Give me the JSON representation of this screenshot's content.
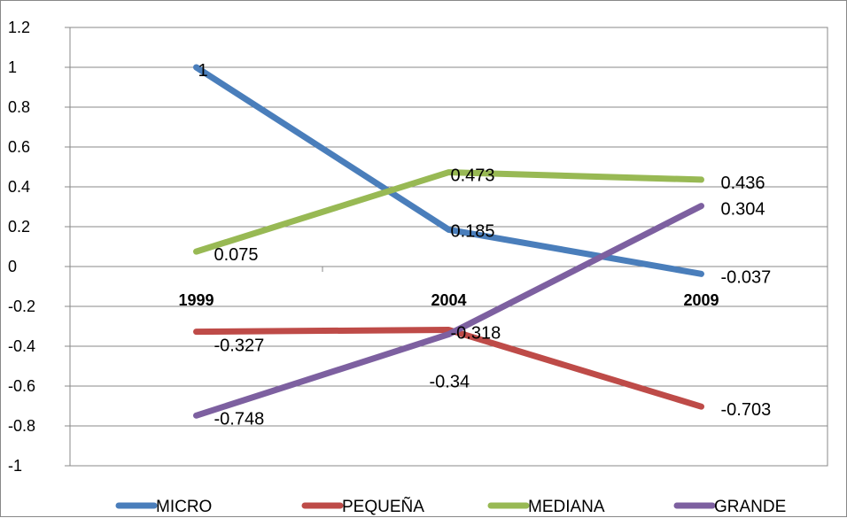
{
  "chart_data": {
    "type": "line",
    "categories": [
      "1999",
      "2004",
      "2009"
    ],
    "ylim": [
      -1,
      1.2
    ],
    "yticks": [
      "1.2",
      "1",
      "0.8",
      "0.6",
      "0.4",
      "0.2",
      "0",
      "-0.2",
      "-0.4",
      "-0.6",
      "-0.8",
      "-1"
    ],
    "grid": true,
    "legend": "bottom",
    "series": [
      {
        "name": "MICRO",
        "color": "#4a7ebb",
        "values": [
          1,
          0.185,
          -0.037
        ],
        "labels": [
          "1",
          "0.185",
          "-0.037"
        ]
      },
      {
        "name": "PEQUEÑA",
        "color": "#be4b48",
        "values": [
          -0.327,
          -0.318,
          -0.703
        ],
        "labels": [
          "-0.327",
          "-0.318",
          "-0.703"
        ]
      },
      {
        "name": "MEDIANA",
        "color": "#98b954",
        "values": [
          0.075,
          0.473,
          0.436
        ],
        "labels": [
          "0.075",
          "0.473",
          "0.436"
        ]
      },
      {
        "name": "GRANDE",
        "color": "#7d60a0",
        "values": [
          -0.748,
          -0.34,
          0.304
        ],
        "labels": [
          "-0.748",
          "-0.34",
          "0.304"
        ]
      }
    ]
  }
}
